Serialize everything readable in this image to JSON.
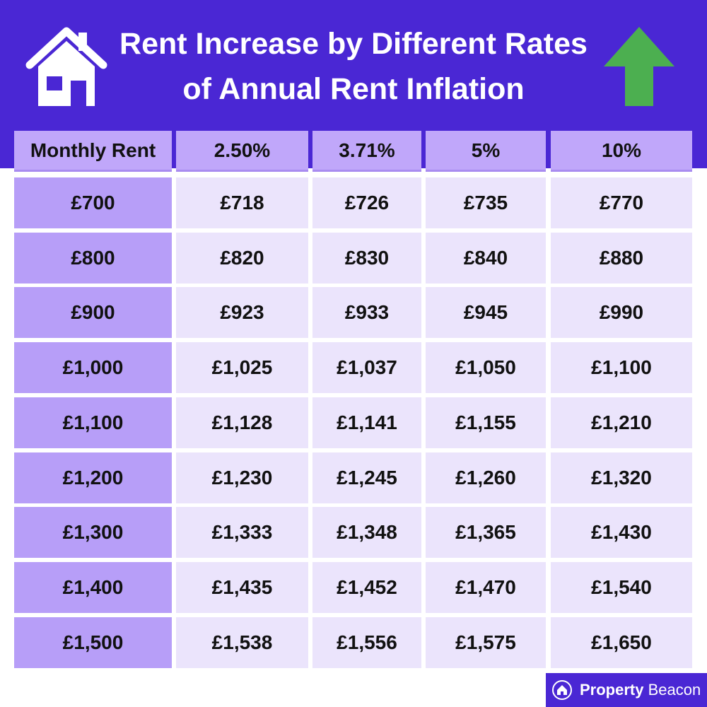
{
  "header": {
    "title": "Rent Increase by Different Rates of Annual Rent Inflation"
  },
  "table": {
    "columns": [
      "Monthly Rent",
      "2.50%",
      "3.71%",
      "5%",
      "10%"
    ],
    "rows": [
      [
        "£700",
        "£718",
        "£726",
        "£735",
        "£770"
      ],
      [
        "£800",
        "£820",
        "£830",
        "£840",
        "£880"
      ],
      [
        "£900",
        "£923",
        "£933",
        "£945",
        "£990"
      ],
      [
        "£1,000",
        "£1,025",
        "£1,037",
        "£1,050",
        "£1,100"
      ],
      [
        "£1,100",
        "£1,128",
        "£1,141",
        "£1,155",
        "£1,210"
      ],
      [
        "£1,200",
        "£1,230",
        "£1,245",
        "£1,260",
        "£1,320"
      ],
      [
        "£1,300",
        "£1,333",
        "£1,348",
        "£1,365",
        "£1,430"
      ],
      [
        "£1,400",
        "£1,435",
        "£1,452",
        "£1,470",
        "£1,540"
      ],
      [
        "£1,500",
        "£1,538",
        "£1,556",
        "£1,575",
        "£1,650"
      ]
    ]
  },
  "footer": {
    "brand_bold": "Property",
    "brand_light": "Beacon"
  }
}
